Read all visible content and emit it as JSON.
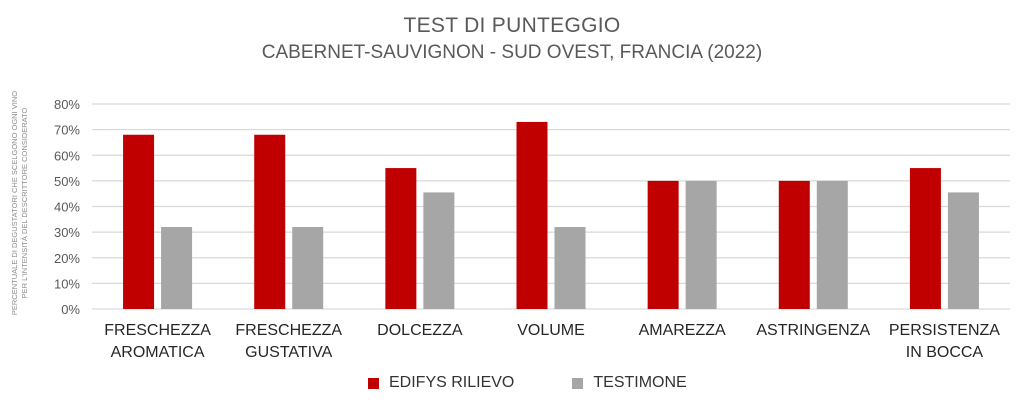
{
  "chart_data": {
    "type": "bar",
    "title": "TEST DI PUNTEGGIO",
    "subtitle": "CABERNET-SAUVIGNON - SUD OVEST, FRANCIA (2022)",
    "ylabel": [
      "PERCENTUALE DI DEGUSTATORI CHE SCELGONO OGNI VINO",
      "PER L'INTENSITÀ DEL DESCRITTORE CONSIDERATO"
    ],
    "ylim": [
      0,
      80
    ],
    "yticks": [
      "0%",
      "10%",
      "20%",
      "30%",
      "40%",
      "50%",
      "60%",
      "70%",
      "80%"
    ],
    "categories": [
      [
        "FRESCHEZZA",
        "AROMATICA"
      ],
      [
        "FRESCHEZZA",
        "GUSTATIVA"
      ],
      [
        "DOLCEZZA"
      ],
      [
        "VOLUME"
      ],
      [
        "AMAREZZA"
      ],
      [
        "ASTRINGENZA"
      ],
      [
        "PERSISTENZA",
        "IN BOCCA"
      ]
    ],
    "series": [
      {
        "name": "EDIFYS RILIEVO",
        "color": "#c00000",
        "values": [
          68,
          68,
          55,
          73,
          50,
          50,
          55
        ]
      },
      {
        "name": "TESTIMONE",
        "color": "#a6a6a6",
        "values": [
          32,
          32,
          45.5,
          32,
          50,
          50,
          45.5
        ]
      }
    ],
    "grid": true,
    "legend_position": "bottom"
  }
}
